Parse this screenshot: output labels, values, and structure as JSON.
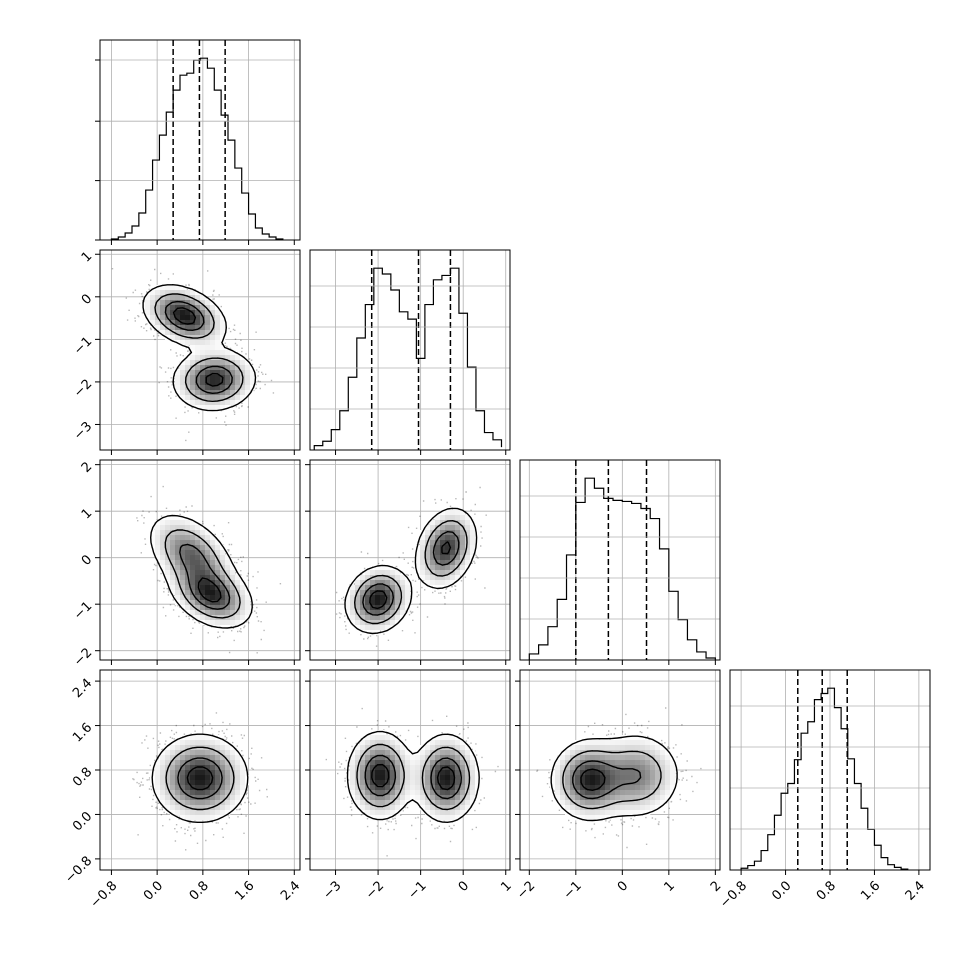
{
  "colors": {
    "background": "#ffffff",
    "frame": "#000000",
    "grid": "#b0b0b0",
    "histogram": "#000000",
    "quantile_line": "#000000",
    "density_fill": "#000000",
    "scatter_points": "#000000"
  },
  "chart_data": {
    "type": "corner",
    "grid": true,
    "legend": "none",
    "title": "",
    "parameters": [
      {
        "name": "",
        "range": [
          -1.0,
          2.5
        ],
        "ticks": [
          -0.8,
          0.0,
          0.8,
          1.6,
          2.4
        ],
        "tick_labels": [
          "−0.8",
          "0.0",
          "0.8",
          "1.6",
          "2.4"
        ],
        "quantiles": [
          0.28,
          0.74,
          1.19
        ],
        "histogram": {
          "edges": [
            -0.8,
            -0.68,
            -0.56,
            -0.44,
            -0.32,
            -0.2,
            -0.08,
            0.04,
            0.16,
            0.28,
            0.4,
            0.52,
            0.64,
            0.76,
            0.88,
            1.0,
            1.12,
            1.24,
            1.36,
            1.48,
            1.6,
            1.72,
            1.84,
            1.96,
            2.08,
            2.2
          ],
          "counts": [
            1,
            3,
            7,
            14,
            27,
            50,
            80,
            105,
            128,
            150,
            165,
            167,
            180,
            182,
            172,
            150,
            125,
            100,
            72,
            47,
            26,
            12,
            6,
            3,
            1
          ]
        }
      },
      {
        "name": "",
        "range": [
          -3.6,
          1.1
        ],
        "ticks": [
          -3,
          -2,
          -1,
          0,
          1
        ],
        "tick_labels": [
          "−3",
          "−2",
          "−1",
          "0",
          "1"
        ],
        "quantiles": [
          -2.15,
          -1.05,
          -0.3
        ],
        "histogram": {
          "edges": [
            -3.5,
            -3.3,
            -3.1,
            -2.9,
            -2.7,
            -2.5,
            -2.3,
            -2.1,
            -1.9,
            -1.7,
            -1.5,
            -1.3,
            -1.1,
            -0.9,
            -0.7,
            -0.5,
            -0.3,
            -0.1,
            0.1,
            0.3,
            0.5,
            0.7,
            0.9
          ],
          "counts": [
            3,
            6,
            14,
            27,
            50,
            77,
            100,
            125,
            121,
            110,
            95,
            90,
            63,
            100,
            117,
            120,
            125,
            94,
            57,
            27,
            12,
            7,
            2
          ]
        }
      },
      {
        "name": "",
        "range": [
          -2.2,
          2.1
        ],
        "ticks": [
          -2,
          -1,
          0,
          1,
          2
        ],
        "tick_labels": [
          "−2",
          "−1",
          "0",
          "1",
          "2"
        ],
        "quantiles": [
          -1.0,
          -0.3,
          0.52
        ],
        "histogram": {
          "edges": [
            -2.0,
            -1.8,
            -1.6,
            -1.4,
            -1.2,
            -1.0,
            -0.8,
            -0.6,
            -0.4,
            -0.2,
            0.0,
            0.2,
            0.4,
            0.6,
            0.8,
            1.0,
            1.2,
            1.4,
            1.6,
            1.8,
            2.0
          ],
          "counts": [
            6,
            15,
            33,
            60,
            104,
            156,
            180,
            170,
            160,
            158,
            157,
            155,
            150,
            140,
            110,
            68,
            40,
            20,
            8,
            2
          ]
        }
      },
      {
        "name": "",
        "range": [
          -1.0,
          2.6
        ],
        "ticks": [
          -0.8,
          0.0,
          0.8,
          1.6,
          2.4
        ],
        "tick_labels": [
          "−0.8",
          "0.0",
          "0.8",
          "1.6",
          "2.4"
        ],
        "quantiles": [
          0.22,
          0.66,
          1.11
        ],
        "histogram": {
          "edges": [
            -0.8,
            -0.68,
            -0.56,
            -0.44,
            -0.32,
            -0.2,
            -0.08,
            0.04,
            0.16,
            0.28,
            0.4,
            0.52,
            0.64,
            0.76,
            0.88,
            1.0,
            1.12,
            1.24,
            1.36,
            1.48,
            1.6,
            1.72,
            1.84,
            1.96,
            2.08,
            2.2
          ],
          "counts": [
            2,
            5,
            10,
            22,
            40,
            62,
            87,
            98,
            125,
            155,
            168,
            193,
            200,
            206,
            184,
            160,
            126,
            98,
            70,
            46,
            28,
            14,
            6,
            3,
            1
          ]
        }
      }
    ],
    "pairs": [
      {
        "x_param": 0,
        "y_param": 1,
        "components": [
          {
            "mean": [
              0.48,
              -0.45
            ],
            "sd": [
              0.33,
              0.33
            ],
            "rho": -0.35,
            "weight": 0.5
          },
          {
            "mean": [
              1.0,
              -1.95
            ],
            "sd": [
              0.33,
              0.33
            ],
            "rho": 0.05,
            "weight": 0.5
          }
        ]
      },
      {
        "x_param": 0,
        "y_param": 2,
        "components": [
          {
            "mean": [
              0.6,
              0.05
            ],
            "sd": [
              0.35,
              0.42
            ],
            "rho": -0.45,
            "weight": 0.5
          },
          {
            "mean": [
              0.95,
              -0.8
            ],
            "sd": [
              0.33,
              0.33
            ],
            "rho": -0.35,
            "weight": 0.5
          }
        ]
      },
      {
        "x_param": 0,
        "y_param": 3,
        "components": [
          {
            "mean": [
              0.75,
              0.65
            ],
            "sd": [
              0.38,
              0.36
            ],
            "rho": 0.0,
            "weight": 1.0
          }
        ]
      },
      {
        "x_param": 1,
        "y_param": 2,
        "components": [
          {
            "mean": [
              -2.0,
              -0.9
            ],
            "sd": [
              0.35,
              0.33
            ],
            "rho": 0.15,
            "weight": 0.5
          },
          {
            "mean": [
              -0.4,
              0.2
            ],
            "sd": [
              0.33,
              0.4
            ],
            "rho": 0.25,
            "weight": 0.5
          }
        ]
      },
      {
        "x_param": 1,
        "y_param": 3,
        "components": [
          {
            "mean": [
              -1.95,
              0.7
            ],
            "sd": [
              0.35,
              0.36
            ],
            "rho": 0.0,
            "weight": 0.5
          },
          {
            "mean": [
              -0.4,
              0.65
            ],
            "sd": [
              0.35,
              0.36
            ],
            "rho": 0.0,
            "weight": 0.5
          }
        ]
      },
      {
        "x_param": 2,
        "y_param": 3,
        "components": [
          {
            "mean": [
              -0.7,
              0.62
            ],
            "sd": [
              0.38,
              0.33
            ],
            "rho": 0.0,
            "weight": 0.55
          },
          {
            "mean": [
              0.3,
              0.7
            ],
            "sd": [
              0.45,
              0.36
            ],
            "rho": 0.0,
            "weight": 0.45
          }
        ]
      }
    ]
  }
}
